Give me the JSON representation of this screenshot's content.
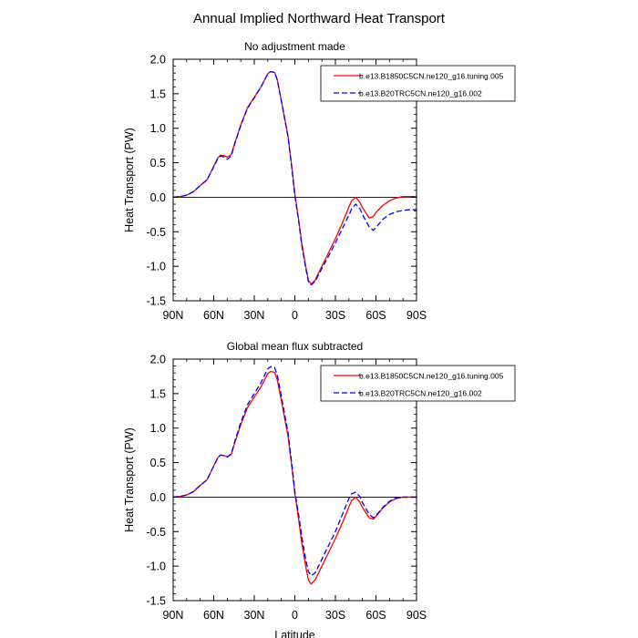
{
  "figure": {
    "title": "Annual Implied Northward Heat Transport"
  },
  "chart_data": [
    {
      "type": "line",
      "title": "No adjustment made",
      "xlabel": "",
      "ylabel": "Heat Transport (PW)",
      "x_axis": "latitude (90 = 90N, -90 = 90S), reversed",
      "xlim": [
        90,
        -90
      ],
      "ylim": [
        -1.5,
        2.0
      ],
      "xticks": [
        {
          "value": 90,
          "label": "90N"
        },
        {
          "value": 60,
          "label": "60N"
        },
        {
          "value": 30,
          "label": "30N"
        },
        {
          "value": 0,
          "label": "0"
        },
        {
          "value": -30,
          "label": "30S"
        },
        {
          "value": -60,
          "label": "60S"
        },
        {
          "value": -90,
          "label": "90S"
        }
      ],
      "yticks": [
        {
          "value": 2.0,
          "label": "2.0"
        },
        {
          "value": 1.5,
          "label": "1.5"
        },
        {
          "value": 1.0,
          "label": "1.0"
        },
        {
          "value": 0.5,
          "label": "0.5"
        },
        {
          "value": 0.0,
          "label": "0.0"
        },
        {
          "value": -0.5,
          "label": "-0.5"
        },
        {
          "value": -1.0,
          "label": "-1.0"
        },
        {
          "value": -1.5,
          "label": "-1.5"
        }
      ],
      "zero_line": true,
      "legend_position": "top-right",
      "series": [
        {
          "name": "b.e13.B1850C5CN.ne120_g16.tuning.005",
          "color": "#ff0000",
          "dash": "solid",
          "x": [
            90,
            85,
            80,
            75,
            70,
            65,
            60,
            57,
            55,
            52,
            50,
            47,
            45,
            40,
            35,
            30,
            25,
            20,
            18,
            15,
            13,
            10,
            5,
            2,
            0,
            -3,
            -5,
            -8,
            -10,
            -12,
            -15,
            -20,
            -25,
            -30,
            -35,
            -40,
            -42,
            -45,
            -48,
            -50,
            -55,
            -58,
            -60,
            -65,
            -70,
            -75,
            -80,
            -85,
            -90
          ],
          "y": [
            0.0,
            0.01,
            0.03,
            0.08,
            0.17,
            0.25,
            0.45,
            0.57,
            0.61,
            0.6,
            0.58,
            0.62,
            0.75,
            1.05,
            1.3,
            1.45,
            1.6,
            1.79,
            1.82,
            1.81,
            1.7,
            1.4,
            0.88,
            0.4,
            0.05,
            -0.35,
            -0.65,
            -1.0,
            -1.2,
            -1.26,
            -1.2,
            -1.0,
            -0.8,
            -0.6,
            -0.38,
            -0.14,
            -0.05,
            0.0,
            -0.07,
            -0.15,
            -0.3,
            -0.28,
            -0.22,
            -0.12,
            -0.05,
            -0.01,
            0.01,
            0.01,
            0.01
          ]
        },
        {
          "name": "b.e13.B20TRC5CN.ne120_g16.002",
          "color": "#0000ff",
          "dash": "dashed",
          "x": [
            90,
            85,
            80,
            75,
            70,
            65,
            60,
            57,
            55,
            52,
            50,
            47,
            45,
            40,
            35,
            30,
            25,
            20,
            18,
            15,
            13,
            10,
            5,
            2,
            0,
            -3,
            -5,
            -8,
            -10,
            -12,
            -15,
            -20,
            -25,
            -30,
            -35,
            -40,
            -42,
            -45,
            -48,
            -50,
            -55,
            -58,
            -60,
            -65,
            -70,
            -75,
            -80,
            -85,
            -90
          ],
          "y": [
            0.0,
            0.01,
            0.03,
            0.08,
            0.17,
            0.25,
            0.44,
            0.56,
            0.6,
            0.58,
            0.55,
            0.6,
            0.74,
            1.04,
            1.29,
            1.44,
            1.6,
            1.79,
            1.82,
            1.81,
            1.7,
            1.4,
            0.87,
            0.38,
            0.02,
            -0.37,
            -0.68,
            -1.02,
            -1.22,
            -1.27,
            -1.22,
            -1.03,
            -0.85,
            -0.66,
            -0.46,
            -0.26,
            -0.17,
            -0.1,
            -0.16,
            -0.25,
            -0.43,
            -0.48,
            -0.44,
            -0.32,
            -0.25,
            -0.21,
            -0.19,
            -0.18,
            -0.18
          ]
        }
      ]
    },
    {
      "type": "line",
      "title": "Global mean flux subtracted",
      "xlabel": "Latitude",
      "ylabel": "Heat Transport (PW)",
      "x_axis": "latitude (90 = 90N, -90 = 90S), reversed",
      "xlim": [
        90,
        -90
      ],
      "ylim": [
        -1.5,
        2.0
      ],
      "xticks": [
        {
          "value": 90,
          "label": "90N"
        },
        {
          "value": 60,
          "label": "60N"
        },
        {
          "value": 30,
          "label": "30N"
        },
        {
          "value": 0,
          "label": "0"
        },
        {
          "value": -30,
          "label": "30S"
        },
        {
          "value": -60,
          "label": "60S"
        },
        {
          "value": -90,
          "label": "90S"
        }
      ],
      "yticks": [
        {
          "value": 2.0,
          "label": "2.0"
        },
        {
          "value": 1.5,
          "label": "1.5"
        },
        {
          "value": 1.0,
          "label": "1.0"
        },
        {
          "value": 0.5,
          "label": "0.5"
        },
        {
          "value": 0.0,
          "label": "0.0"
        },
        {
          "value": -0.5,
          "label": "-0.5"
        },
        {
          "value": -1.0,
          "label": "-1.0"
        },
        {
          "value": -1.5,
          "label": "-1.5"
        }
      ],
      "zero_line": true,
      "legend_position": "top-right",
      "series": [
        {
          "name": "b.e13.B1850C5CN.ne120_g16.tuning.005",
          "color": "#ff0000",
          "dash": "solid",
          "x": [
            90,
            85,
            80,
            75,
            70,
            65,
            60,
            57,
            55,
            52,
            50,
            47,
            45,
            40,
            35,
            30,
            25,
            20,
            18,
            15,
            13,
            10,
            5,
            2,
            0,
            -3,
            -5,
            -8,
            -10,
            -12,
            -15,
            -20,
            -25,
            -30,
            -35,
            -40,
            -42,
            -45,
            -48,
            -50,
            -55,
            -58,
            -60,
            -65,
            -70,
            -75,
            -80,
            -85,
            -90
          ],
          "y": [
            0.0,
            0.01,
            0.03,
            0.08,
            0.17,
            0.25,
            0.45,
            0.57,
            0.61,
            0.6,
            0.58,
            0.62,
            0.75,
            1.05,
            1.3,
            1.45,
            1.6,
            1.79,
            1.82,
            1.81,
            1.7,
            1.4,
            0.88,
            0.4,
            0.05,
            -0.35,
            -0.65,
            -1.0,
            -1.2,
            -1.26,
            -1.2,
            -1.0,
            -0.8,
            -0.6,
            -0.38,
            -0.14,
            -0.05,
            0.0,
            -0.07,
            -0.15,
            -0.3,
            -0.32,
            -0.28,
            -0.16,
            -0.07,
            -0.02,
            0.0,
            0.0,
            0.0
          ]
        },
        {
          "name": "b.e13.B20TRC5CN.ne120_g16.002",
          "color": "#0000ff",
          "dash": "dashed",
          "x": [
            90,
            85,
            80,
            75,
            70,
            65,
            60,
            57,
            55,
            52,
            50,
            47,
            45,
            40,
            35,
            30,
            25,
            20,
            18,
            15,
            13,
            10,
            5,
            2,
            0,
            -3,
            -5,
            -8,
            -10,
            -12,
            -15,
            -20,
            -25,
            -30,
            -35,
            -40,
            -42,
            -45,
            -48,
            -50,
            -55,
            -58,
            -60,
            -65,
            -70,
            -75,
            -80,
            -85,
            -90
          ],
          "y": [
            0.0,
            0.01,
            0.03,
            0.08,
            0.17,
            0.25,
            0.45,
            0.57,
            0.61,
            0.6,
            0.58,
            0.63,
            0.77,
            1.08,
            1.34,
            1.5,
            1.66,
            1.86,
            1.89,
            1.88,
            1.77,
            1.46,
            0.93,
            0.44,
            0.08,
            -0.28,
            -0.56,
            -0.9,
            -1.08,
            -1.14,
            -1.1,
            -0.9,
            -0.7,
            -0.5,
            -0.26,
            -0.02,
            0.05,
            0.07,
            0.01,
            -0.08,
            -0.25,
            -0.3,
            -0.27,
            -0.15,
            -0.06,
            -0.01,
            0.0,
            0.0,
            0.0
          ]
        }
      ]
    }
  ]
}
